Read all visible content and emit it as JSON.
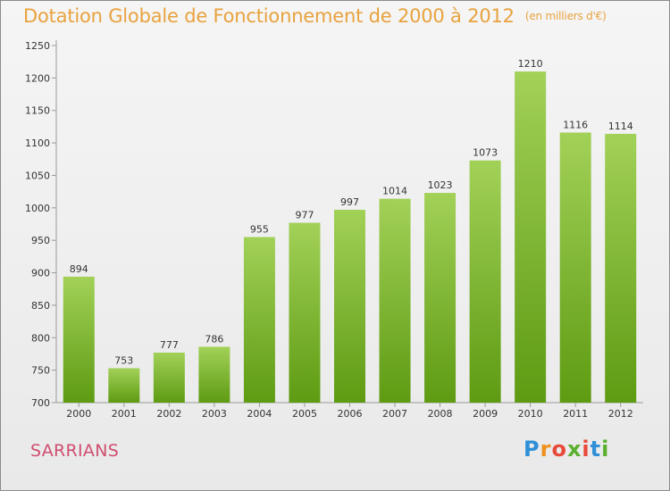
{
  "title": "Dotation Globale de Fonctionnement de 2000 à 2012",
  "unit_note": "(en milliers d'€)",
  "commune": "SARRIANS",
  "logo": {
    "letters": [
      "P",
      "r",
      "o",
      "x",
      "i",
      "t",
      "i"
    ],
    "colors": [
      "#2e8fd8",
      "#f0901c",
      "#e84a3a",
      "#5ab02e",
      "#e84a3a",
      "#2e8fd8",
      "#5ab02e"
    ]
  },
  "colors": {
    "bar_top": "#a2d158",
    "bar_bottom": "#5e9b12",
    "title": "#e8a23e",
    "commune": "#d04d6f"
  },
  "chart_data": {
    "type": "bar",
    "title": "Dotation Globale de Fonctionnement de 2000 à 2012",
    "categories": [
      "2000",
      "2001",
      "2002",
      "2003",
      "2004",
      "2005",
      "2006",
      "2007",
      "2008",
      "2009",
      "2010",
      "2011",
      "2012"
    ],
    "values": [
      894,
      753,
      777,
      786,
      955,
      977,
      997,
      1014,
      1023,
      1073,
      1210,
      1116,
      1114
    ],
    "ylim": [
      700,
      1250
    ],
    "yticks": [
      700,
      750,
      800,
      850,
      900,
      950,
      1000,
      1050,
      1100,
      1150,
      1200,
      1250
    ],
    "grid": false,
    "data_labels": true
  }
}
